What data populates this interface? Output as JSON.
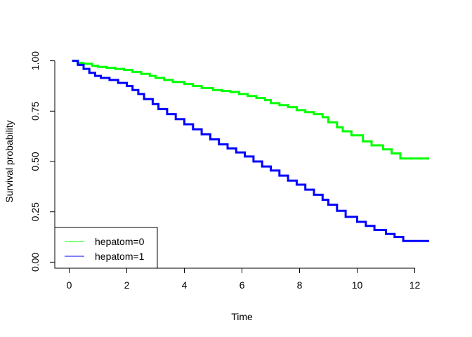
{
  "chart_data": {
    "type": "line",
    "xlabel": "Time",
    "ylabel": "Survival probability",
    "xlim": [
      -0.5,
      12.5
    ],
    "ylim": [
      -0.03,
      1.03
    ],
    "x_ticks": [
      "0",
      "2",
      "4",
      "6",
      "8",
      "10",
      "12"
    ],
    "y_ticks": [
      "0.00",
      "0.25",
      "0.50",
      "0.75",
      "1.00"
    ],
    "grid": false,
    "legend": "bottom-left",
    "series": [
      {
        "name": "hepatom=0",
        "color": "#00ff00",
        "x": [
          0.1,
          0.3,
          0.5,
          0.8,
          1.0,
          1.3,
          1.6,
          1.9,
          2.2,
          2.5,
          2.8,
          3.0,
          3.3,
          3.6,
          4.0,
          4.3,
          4.6,
          5.0,
          5.3,
          5.6,
          5.9,
          6.2,
          6.5,
          6.8,
          7.0,
          7.3,
          7.6,
          7.9,
          8.2,
          8.5,
          8.8,
          9.0,
          9.3,
          9.5,
          9.8,
          10.2,
          10.5,
          10.9,
          11.2,
          11.5,
          12.5
        ],
        "y": [
          1.0,
          0.99,
          0.985,
          0.975,
          0.97,
          0.965,
          0.96,
          0.955,
          0.945,
          0.935,
          0.925,
          0.915,
          0.905,
          0.895,
          0.885,
          0.875,
          0.865,
          0.855,
          0.85,
          0.845,
          0.835,
          0.825,
          0.815,
          0.805,
          0.79,
          0.78,
          0.77,
          0.755,
          0.745,
          0.735,
          0.72,
          0.695,
          0.67,
          0.65,
          0.63,
          0.6,
          0.58,
          0.56,
          0.54,
          0.515,
          0.515
        ]
      },
      {
        "name": "hepatom=1",
        "color": "#0000ff",
        "x": [
          0.1,
          0.3,
          0.5,
          0.7,
          0.9,
          1.1,
          1.4,
          1.7,
          2.0,
          2.2,
          2.4,
          2.6,
          2.9,
          3.1,
          3.4,
          3.7,
          4.0,
          4.3,
          4.6,
          4.9,
          5.2,
          5.5,
          5.8,
          6.1,
          6.4,
          6.7,
          7.0,
          7.3,
          7.6,
          7.9,
          8.2,
          8.5,
          8.8,
          9.0,
          9.3,
          9.6,
          10.0,
          10.3,
          10.6,
          11.0,
          11.3,
          11.6,
          12.5
        ],
        "y": [
          1.0,
          0.98,
          0.96,
          0.94,
          0.925,
          0.915,
          0.905,
          0.89,
          0.875,
          0.855,
          0.835,
          0.81,
          0.785,
          0.76,
          0.735,
          0.71,
          0.685,
          0.66,
          0.635,
          0.61,
          0.585,
          0.565,
          0.545,
          0.525,
          0.5,
          0.475,
          0.455,
          0.43,
          0.405,
          0.385,
          0.36,
          0.335,
          0.31,
          0.285,
          0.255,
          0.225,
          0.2,
          0.18,
          0.16,
          0.14,
          0.125,
          0.105,
          0.105
        ]
      }
    ]
  }
}
